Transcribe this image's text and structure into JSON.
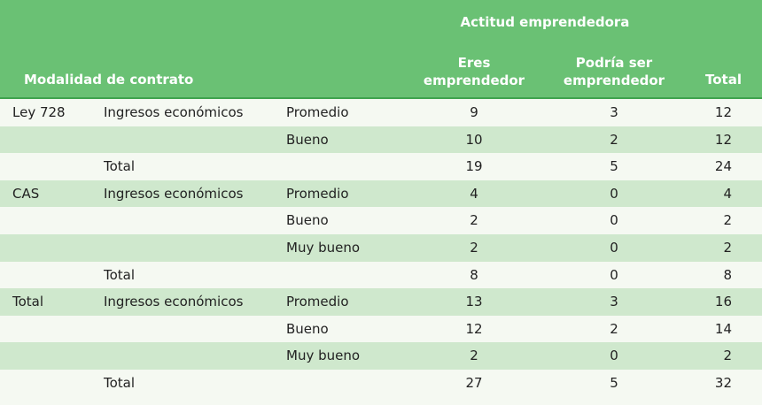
{
  "header": {
    "group_label": "Actitud emprendedora",
    "modalidad_label": "Modalidad de contrato",
    "col1_line1": "Eres",
    "col1_line2": "emprendedor",
    "col2_line1": "Podría ser",
    "col2_line2": "emprendedor",
    "total_label": "Total"
  },
  "rows": [
    {
      "mod": "Ley 728",
      "ing": "Ingresos económicos",
      "lvl": "Promedio",
      "v1": "9",
      "v2": "3",
      "vt": "12"
    },
    {
      "mod": "",
      "ing": "",
      "lvl": "Bueno",
      "v1": "10",
      "v2": "2",
      "vt": "12"
    },
    {
      "mod": "",
      "ing": "Total",
      "lvl": "",
      "v1": "19",
      "v2": "5",
      "vt": "24"
    },
    {
      "mod": "CAS",
      "ing": "Ingresos económicos",
      "lvl": "Promedio",
      "v1": "4",
      "v2": "0",
      "vt": "4"
    },
    {
      "mod": "",
      "ing": "",
      "lvl": "Bueno",
      "v1": "2",
      "v2": "0",
      "vt": "2"
    },
    {
      "mod": "",
      "ing": "",
      "lvl": "Muy bueno",
      "v1": "2",
      "v2": "0",
      "vt": "2"
    },
    {
      "mod": "",
      "ing": "Total",
      "lvl": "",
      "v1": "8",
      "v2": "0",
      "vt": "8"
    },
    {
      "mod": "Total",
      "ing": "Ingresos económicos",
      "lvl": "Promedio",
      "v1": "13",
      "v2": "3",
      "vt": "16"
    },
    {
      "mod": "",
      "ing": "",
      "lvl": "Bueno",
      "v1": "12",
      "v2": "2",
      "vt": "14"
    },
    {
      "mod": "",
      "ing": "",
      "lvl": "Muy bueno",
      "v1": "2",
      "v2": "0",
      "vt": "2"
    },
    {
      "mod": "",
      "ing": "Total",
      "lvl": "",
      "v1": "27",
      "v2": "5",
      "vt": "32"
    }
  ]
}
